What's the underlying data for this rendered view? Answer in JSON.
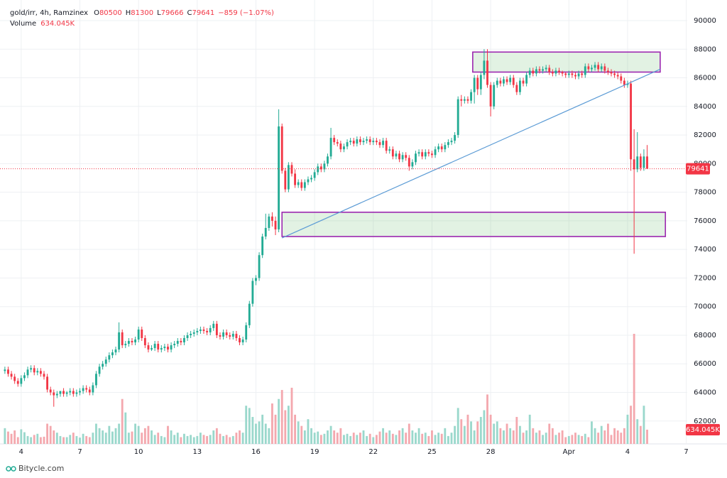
{
  "chart_data": {
    "type": "candlestick",
    "symbol": "gold/irr, 4h, Ramzinex",
    "ohlc_prefixes": [
      "O",
      "H",
      "L",
      "C"
    ],
    "change_label": "−859 (−1.07%)",
    "up_color": "#22ab94",
    "down_color": "#f23645",
    "volume_up_color": "#9ad8cc",
    "volume_down_color": "#f4a8ae",
    "grid": true,
    "last_price_line": true,
    "xlim": [
      -1.5,
      209.3
    ],
    "xticks": [
      {
        "value": 5,
        "label": "4"
      },
      {
        "value": 23,
        "label": "7"
      },
      {
        "value": 41,
        "label": "10"
      },
      {
        "value": 59,
        "label": "13"
      },
      {
        "value": 77,
        "label": "16"
      },
      {
        "value": 95,
        "label": "19"
      },
      {
        "value": 113,
        "label": "22"
      },
      {
        "value": 131,
        "label": "25"
      },
      {
        "value": 149,
        "label": "28"
      },
      {
        "value": 173,
        "label": "Apr"
      },
      {
        "value": 191,
        "label": "4"
      },
      {
        "value": 209,
        "label": "7"
      }
    ],
    "ylim": [
      60400,
      91440
    ],
    "yticks": [
      62000,
      64000,
      66000,
      68000,
      70000,
      72000,
      74000,
      76000,
      78000,
      80000,
      82000,
      84000,
      86000,
      88000,
      90000
    ],
    "x": [
      0,
      1,
      2,
      3,
      4,
      5,
      6,
      7,
      8,
      9,
      10,
      11,
      12,
      13,
      14,
      15,
      16,
      17,
      18,
      19,
      20,
      21,
      22,
      23,
      24,
      25,
      26,
      27,
      28,
      29,
      30,
      31,
      32,
      33,
      34,
      35,
      36,
      37,
      38,
      39,
      40,
      41,
      42,
      43,
      44,
      45,
      46,
      47,
      48,
      49,
      50,
      51,
      52,
      53,
      54,
      55,
      56,
      57,
      58,
      59,
      60,
      61,
      62,
      63,
      64,
      65,
      66,
      67,
      68,
      69,
      70,
      71,
      72,
      73,
      74,
      75,
      76,
      77,
      78,
      79,
      80,
      81,
      82,
      83,
      84,
      85,
      86,
      87,
      88,
      89,
      90,
      91,
      92,
      93,
      94,
      95,
      96,
      97,
      98,
      99,
      100,
      101,
      102,
      103,
      104,
      105,
      106,
      107,
      108,
      109,
      110,
      111,
      112,
      113,
      114,
      115,
      116,
      117,
      118,
      119,
      120,
      121,
      122,
      123,
      124,
      125,
      126,
      127,
      128,
      129,
      130,
      131,
      132,
      133,
      134,
      135,
      136,
      137,
      138,
      139,
      140,
      141,
      142,
      143,
      144,
      145,
      146,
      147,
      148,
      149,
      150,
      151,
      152,
      153,
      154,
      155,
      156,
      157,
      158,
      159,
      160,
      161,
      162,
      163,
      164,
      165,
      166,
      167,
      168,
      169,
      170,
      171,
      172,
      173,
      174,
      175,
      176,
      177,
      178,
      179,
      180,
      181,
      182,
      183,
      184,
      185,
      186,
      187,
      188,
      189,
      190,
      191,
      192,
      193,
      194,
      195,
      196,
      197
    ],
    "open": [
      65500,
      65600,
      65300,
      65100,
      64800,
      64600,
      65000,
      65200,
      65600,
      65700,
      65400,
      65500,
      65300,
      65100,
      64200,
      64000,
      63800,
      63900,
      64100,
      63900,
      64000,
      64100,
      63900,
      64000,
      64100,
      64300,
      64200,
      64000,
      64500,
      65300,
      65800,
      66000,
      66300,
      66600,
      66800,
      67000,
      68200,
      67300,
      67400,
      67600,
      67500,
      67700,
      68400,
      67800,
      67300,
      67000,
      67100,
      67400,
      67000,
      67100,
      67200,
      67000,
      67300,
      67400,
      67600,
      67500,
      67800,
      68000,
      68100,
      68200,
      68300,
      68400,
      68300,
      68200,
      68500,
      68800,
      68000,
      67900,
      68200,
      68000,
      67900,
      68100,
      67800,
      67500,
      67700,
      68700,
      70200,
      71800,
      72000,
      73600,
      74900,
      75500,
      76300,
      76000,
      75400,
      82600,
      79500,
      78200,
      79900,
      79300,
      78500,
      78700,
      78300,
      78700,
      78900,
      79000,
      79400,
      79800,
      79600,
      80000,
      80500,
      81800,
      81500,
      81400,
      81000,
      81200,
      81500,
      81600,
      81400,
      81700,
      81500,
      81600,
      81700,
      81500,
      81600,
      81500,
      81300,
      81600,
      80900,
      81000,
      80500,
      80700,
      80300,
      80600,
      80400,
      79800,
      80100,
      80700,
      80800,
      80500,
      80800,
      80700,
      80600,
      81000,
      81200,
      81000,
      81300,
      81500,
      81600,
      82000,
      84500,
      84400,
      84500,
      84400,
      85000,
      86000,
      85200,
      86200,
      87200,
      85500,
      84000,
      85500,
      85800,
      85600,
      85900,
      85700,
      86000,
      85500,
      85000,
      85800,
      85600,
      86200,
      86500,
      86300,
      86600,
      86500,
      86600,
      86700,
      86400,
      86300,
      86500,
      86400,
      86300,
      86200,
      86300,
      86200,
      86100,
      86300,
      86200,
      86800,
      86600,
      86700,
      86900,
      86600,
      86800,
      86500,
      86400,
      86300,
      86200,
      86100,
      85800,
      85500,
      85600,
      80300,
      79600,
      80500,
      79700,
      80500
    ],
    "high": [
      65800,
      65800,
      65500,
      65300,
      65000,
      65200,
      65400,
      65800,
      65900,
      65900,
      65700,
      65700,
      65500,
      65300,
      64400,
      64200,
      64100,
      64100,
      64300,
      64100,
      64300,
      64300,
      64200,
      64300,
      64500,
      64500,
      64400,
      64700,
      65500,
      66000,
      66200,
      66500,
      66800,
      67000,
      67200,
      68900,
      68400,
      67600,
      67800,
      67800,
      67900,
      68600,
      68600,
      68000,
      67500,
      67300,
      67600,
      67600,
      67300,
      67400,
      67400,
      67500,
      67600,
      67800,
      67800,
      68000,
      68200,
      68300,
      68400,
      68500,
      68600,
      68600,
      68500,
      68700,
      69000,
      69000,
      68200,
      68400,
      68400,
      68200,
      68300,
      68300,
      68000,
      67900,
      68900,
      70400,
      72000,
      72200,
      73800,
      75100,
      76500,
      76500,
      76600,
      76300,
      83800,
      82800,
      79700,
      80100,
      80100,
      79600,
      78900,
      78900,
      78900,
      79100,
      79200,
      79600,
      80000,
      80000,
      80200,
      80700,
      82500,
      82000,
      81700,
      81600,
      81400,
      81700,
      81800,
      81800,
      81900,
      81900,
      81800,
      81900,
      81900,
      81800,
      81800,
      81700,
      81800,
      81800,
      81200,
      81200,
      80900,
      80900,
      80800,
      80800,
      80600,
      80300,
      80900,
      81000,
      81000,
      81000,
      81000,
      80900,
      81200,
      81400,
      81400,
      81500,
      81700,
      81800,
      82200,
      84700,
      84800,
      84700,
      84700,
      85200,
      86200,
      86200,
      86400,
      88000,
      88000,
      85700,
      85700,
      86000,
      86000,
      86100,
      86100,
      86200,
      86200,
      85700,
      86000,
      86000,
      86400,
      86700,
      86700,
      86800,
      86800,
      86800,
      86900,
      86900,
      86600,
      86700,
      86700,
      86500,
      86400,
      86500,
      86500,
      86400,
      86500,
      86500,
      87000,
      87000,
      86900,
      87100,
      87100,
      87000,
      87000,
      86700,
      86600,
      86500,
      86400,
      86300,
      86000,
      85800,
      85800,
      82400,
      82200,
      80700,
      81000,
      81300
    ],
    "low": [
      65300,
      65100,
      64900,
      64600,
      64400,
      64400,
      64800,
      65000,
      65400,
      65200,
      65200,
      65100,
      64900,
      64000,
      63800,
      63000,
      63600,
      63700,
      63700,
      63700,
      63800,
      63700,
      63700,
      63800,
      63900,
      64000,
      63800,
      63800,
      64300,
      65100,
      65600,
      65800,
      66100,
      66400,
      66600,
      66800,
      67100,
      67100,
      67200,
      67300,
      67300,
      67500,
      67600,
      67100,
      66800,
      66900,
      66900,
      66800,
      66800,
      66900,
      66800,
      66800,
      67100,
      67200,
      67300,
      67300,
      67600,
      67800,
      67900,
      68000,
      68100,
      68100,
      68000,
      68000,
      68300,
      67800,
      67700,
      67700,
      67800,
      67700,
      67700,
      67600,
      67300,
      67300,
      67500,
      68500,
      70000,
      71500,
      71800,
      73400,
      74700,
      75300,
      75600,
      75000,
      75200,
      79300,
      78000,
      78000,
      79100,
      78300,
      78300,
      78100,
      78100,
      78500,
      78700,
      78800,
      79200,
      79400,
      79400,
      79800,
      80300,
      81300,
      81200,
      80800,
      80800,
      81000,
      81300,
      81200,
      81200,
      81300,
      81300,
      81400,
      81300,
      81300,
      81300,
      81100,
      81100,
      80700,
      80700,
      80300,
      80300,
      80100,
      80100,
      80200,
      79500,
      79600,
      79900,
      80500,
      80300,
      80300,
      80500,
      80400,
      80400,
      80800,
      80800,
      80800,
      81100,
      81300,
      81400,
      81800,
      84000,
      84200,
      84200,
      84200,
      84200,
      84800,
      84800,
      85900,
      85300,
      83300,
      83800,
      85300,
      85400,
      85400,
      85500,
      85500,
      85300,
      84800,
      84800,
      85400,
      85400,
      86000,
      86100,
      86100,
      86300,
      86300,
      86400,
      86200,
      86100,
      86100,
      86200,
      86100,
      86000,
      86000,
      86000,
      85900,
      85900,
      86000,
      86000,
      86400,
      86400,
      86500,
      86400,
      86400,
      86300,
      86200,
      86100,
      86000,
      85900,
      85600,
      85300,
      85300,
      79500,
      73700,
      79400,
      79500,
      79500,
      79666
    ],
    "close": [
      65600,
      65300,
      65100,
      64800,
      64600,
      65000,
      65200,
      65600,
      65700,
      65400,
      65500,
      65300,
      65100,
      64200,
      64000,
      63800,
      63900,
      64100,
      63900,
      64000,
      64100,
      63900,
      64000,
      64100,
      64300,
      64200,
      64000,
      64500,
      65300,
      65800,
      66000,
      66300,
      66600,
      66800,
      67000,
      68200,
      67300,
      67400,
      67600,
      67500,
      67700,
      68400,
      67800,
      67300,
      67000,
      67100,
      67400,
      67000,
      67100,
      67200,
      67000,
      67300,
      67400,
      67600,
      67500,
      67800,
      68000,
      68100,
      68200,
      68300,
      68400,
      68300,
      68200,
      68500,
      68800,
      68000,
      67900,
      68200,
      68000,
      67900,
      68100,
      67800,
      67500,
      67700,
      68700,
      70200,
      71800,
      72000,
      73600,
      74900,
      75500,
      76300,
      76000,
      75400,
      82600,
      79500,
      78200,
      79900,
      79300,
      78500,
      78700,
      78300,
      78700,
      78900,
      79000,
      79400,
      79800,
      79600,
      80000,
      80500,
      81800,
      81500,
      81400,
      81000,
      81200,
      81500,
      81600,
      81400,
      81700,
      81500,
      81600,
      81700,
      81500,
      81600,
      81500,
      81300,
      81600,
      80900,
      81000,
      80500,
      80700,
      80300,
      80600,
      80400,
      79800,
      80100,
      80700,
      80800,
      80500,
      80800,
      80700,
      80600,
      81000,
      81200,
      81000,
      81300,
      81500,
      81600,
      82000,
      84500,
      84400,
      84500,
      84400,
      85000,
      86000,
      85200,
      86200,
      87200,
      85500,
      84000,
      85500,
      85800,
      85600,
      85900,
      85700,
      86000,
      85500,
      85000,
      85800,
      85600,
      86200,
      86500,
      86300,
      86600,
      86500,
      86600,
      86700,
      86400,
      86300,
      86500,
      86400,
      86300,
      86200,
      86300,
      86200,
      86100,
      86300,
      86200,
      86800,
      86600,
      86700,
      86900,
      86600,
      86800,
      86500,
      86400,
      86300,
      86200,
      86100,
      85800,
      85500,
      85600,
      80300,
      79600,
      80500,
      79700,
      80500,
      79641
    ],
    "volume": {
      "name": "Volume",
      "last_label": "634.045K",
      "values": [
        700000,
        550000,
        450000,
        600000,
        300000,
        650000,
        520000,
        350000,
        300000,
        400000,
        450000,
        300000,
        320000,
        900000,
        800000,
        600000,
        500000,
        350000,
        300000,
        300000,
        400000,
        500000,
        350000,
        280000,
        450000,
        350000,
        300000,
        500000,
        900000,
        700000,
        600000,
        500000,
        800000,
        550000,
        700000,
        900000,
        2000000,
        1400000,
        500000,
        550000,
        900000,
        800000,
        500000,
        700000,
        800000,
        600000,
        400000,
        500000,
        350000,
        300000,
        800000,
        600000,
        400000,
        500000,
        300000,
        450000,
        350000,
        400000,
        300000,
        350000,
        500000,
        400000,
        350000,
        400000,
        600000,
        700000,
        450000,
        350000,
        400000,
        300000,
        350000,
        500000,
        600000,
        500000,
        1700000,
        1600000,
        1200000,
        900000,
        1000000,
        1300000,
        900000,
        700000,
        1800000,
        1300000,
        2000000,
        2400000,
        1500000,
        1700000,
        2500000,
        1300000,
        1000000,
        800000,
        600000,
        1100000,
        700000,
        500000,
        550000,
        400000,
        450000,
        600000,
        800000,
        600000,
        500000,
        700000,
        400000,
        450000,
        350000,
        500000,
        400000,
        500000,
        600000,
        350000,
        450000,
        300000,
        400000,
        550000,
        700000,
        500000,
        600000,
        450000,
        400000,
        600000,
        700000,
        500000,
        900000,
        600000,
        500000,
        700000,
        450000,
        500000,
        350000,
        600000,
        400000,
        500000,
        450000,
        700000,
        350000,
        500000,
        800000,
        1600000,
        1100000,
        800000,
        1300000,
        1000000,
        600000,
        1000000,
        1200000,
        1500000,
        2200000,
        1300000,
        900000,
        1000000,
        700000,
        600000,
        900000,
        700000,
        600000,
        1200000,
        800000,
        500000,
        600000,
        1300000,
        700000,
        500000,
        600000,
        400000,
        500000,
        900000,
        700000,
        400000,
        500000,
        600000,
        300000,
        350000,
        400000,
        500000,
        400000,
        350000,
        450000,
        300000,
        1000000,
        700000,
        500000,
        800000,
        600000,
        900000,
        400000,
        700000,
        600000,
        500000,
        700000,
        1300000,
        1700000,
        4900000,
        1100000,
        800000,
        1700000,
        634045
      ]
    },
    "annotations": [
      {
        "type": "box",
        "x": [
          143.5,
          201
        ],
        "y": [
          86400,
          87800
        ]
      },
      {
        "type": "box",
        "x": [
          85,
          202.6
        ],
        "y": [
          74900,
          76600
        ]
      },
      {
        "type": "line",
        "x": [
          85,
          201
        ],
        "y": [
          74800,
          86600
        ]
      }
    ],
    "watermark": "Bitycle.com"
  }
}
